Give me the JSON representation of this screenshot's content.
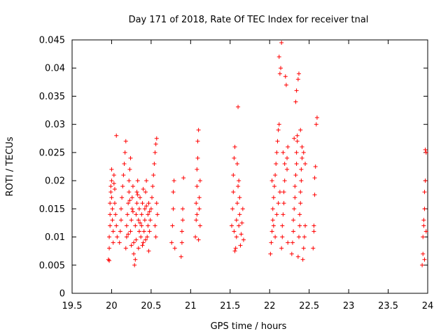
{
  "chart_data": {
    "type": "scatter",
    "title": "Day 171 of 2018, Rate Of TEC Index for receiver tnal",
    "xlabel": "GPS time / hours",
    "ylabel": "ROTI / TECUs",
    "xlim": [
      19.5,
      24
    ],
    "ylim": [
      0,
      0.045
    ],
    "xticks": [
      19.5,
      20,
      20.5,
      21,
      21.5,
      22,
      22.5,
      23,
      23.5,
      24
    ],
    "xtick_labels": [
      "19.5",
      "20",
      "20.5",
      "21",
      "21.5",
      "22",
      "22.5",
      "23",
      "23.5",
      "24"
    ],
    "yticks": [
      0,
      0.005,
      0.01,
      0.015,
      0.02,
      0.025,
      0.03,
      0.035,
      0.04,
      0.045
    ],
    "ytick_labels": [
      "0",
      "0.005",
      "0.01",
      "0.015",
      "0.02",
      "0.025",
      "0.03",
      "0.035",
      "0.04",
      "0.045"
    ],
    "marker": "+",
    "marker_color": "#ff0000",
    "grid": false,
    "series": [
      {
        "name": "ROTI",
        "points": [
          [
            19.96,
            0.006
          ],
          [
            19.97,
            0.008
          ],
          [
            19.97,
            0.01
          ],
          [
            19.98,
            0.012
          ],
          [
            19.98,
            0.014
          ],
          [
            19.98,
            0.016
          ],
          [
            19.99,
            0.018
          ],
          [
            19.99,
            0.019
          ],
          [
            20.0,
            0.02
          ],
          [
            20.0,
            0.017
          ],
          [
            20.01,
            0.015
          ],
          [
            20.01,
            0.013
          ],
          [
            20.02,
            0.011
          ],
          [
            20.02,
            0.009
          ],
          [
            20.03,
            0.0195
          ],
          [
            20.03,
            0.021
          ],
          [
            20.04,
            0.016
          ],
          [
            20.05,
            0.014
          ],
          [
            20.06,
            0.012
          ],
          [
            20.06,
            0.028
          ],
          [
            20.07,
            0.01
          ],
          [
            19.97,
            0.0058
          ],
          [
            20.0,
            0.022
          ],
          [
            20.04,
            0.0185
          ],
          [
            20.1,
            0.009
          ],
          [
            20.11,
            0.011
          ],
          [
            20.12,
            0.013
          ],
          [
            20.12,
            0.015
          ],
          [
            20.13,
            0.017
          ],
          [
            20.14,
            0.019
          ],
          [
            20.15,
            0.021
          ],
          [
            20.16,
            0.023
          ],
          [
            20.17,
            0.025
          ],
          [
            20.18,
            0.027
          ],
          [
            20.18,
            0.008
          ],
          [
            20.19,
            0.01
          ],
          [
            20.19,
            0.012
          ],
          [
            20.2,
            0.014
          ],
          [
            20.21,
            0.016
          ],
          [
            20.22,
            0.018
          ],
          [
            20.22,
            0.02
          ],
          [
            20.23,
            0.022
          ],
          [
            20.24,
            0.024
          ],
          [
            20.24,
            0.011
          ],
          [
            20.25,
            0.013
          ],
          [
            20.26,
            0.015
          ],
          [
            20.26,
            0.017
          ],
          [
            20.27,
            0.019
          ],
          [
            20.28,
            0.007
          ],
          [
            20.28,
            0.009
          ],
          [
            20.29,
            0.005
          ],
          [
            20.3,
            0.006
          ],
          [
            20.3,
            0.012
          ],
          [
            20.31,
            0.014
          ],
          [
            20.32,
            0.016
          ],
          [
            20.32,
            0.018
          ],
          [
            20.33,
            0.02
          ],
          [
            20.34,
            0.013
          ],
          [
            20.35,
            0.011
          ],
          [
            20.35,
            0.015
          ],
          [
            20.36,
            0.017
          ],
          [
            20.37,
            0.01
          ],
          [
            20.38,
            0.012
          ],
          [
            20.38,
            0.014
          ],
          [
            20.39,
            0.016
          ],
          [
            20.4,
            0.009
          ],
          [
            20.41,
            0.011
          ],
          [
            20.42,
            0.013
          ],
          [
            20.42,
            0.015
          ],
          [
            20.43,
            0.018
          ],
          [
            20.44,
            0.02
          ],
          [
            20.45,
            0.01
          ],
          [
            20.46,
            0.012
          ],
          [
            20.46,
            0.014
          ],
          [
            20.47,
            0.016
          ],
          [
            20.48,
            0.011
          ],
          [
            20.49,
            0.013
          ],
          [
            20.5,
            0.015
          ],
          [
            20.51,
            0.017
          ],
          [
            20.52,
            0.019
          ],
          [
            20.53,
            0.021
          ],
          [
            20.54,
            0.023
          ],
          [
            20.55,
            0.025
          ],
          [
            20.56,
            0.0265
          ],
          [
            20.57,
            0.0275
          ],
          [
            20.55,
            0.012
          ],
          [
            20.56,
            0.01
          ],
          [
            20.57,
            0.016
          ],
          [
            20.58,
            0.014
          ],
          [
            20.23,
            0.0165
          ],
          [
            20.27,
            0.0145
          ],
          [
            20.33,
            0.0175
          ],
          [
            20.36,
            0.0125
          ],
          [
            20.4,
            0.0185
          ],
          [
            20.44,
            0.0155
          ],
          [
            20.48,
            0.0145
          ],
          [
            20.21,
            0.0105
          ],
          [
            20.25,
            0.0085
          ],
          [
            20.31,
            0.0095
          ],
          [
            20.34,
            0.008
          ],
          [
            20.39,
            0.0085
          ],
          [
            20.43,
            0.0095
          ],
          [
            20.47,
            0.0075
          ],
          [
            20.76,
            0.009
          ],
          [
            20.77,
            0.012
          ],
          [
            20.78,
            0.015
          ],
          [
            20.78,
            0.018
          ],
          [
            20.79,
            0.02
          ],
          [
            20.8,
            0.008
          ],
          [
            20.88,
            0.0065
          ],
          [
            20.89,
            0.009
          ],
          [
            20.89,
            0.011
          ],
          [
            20.9,
            0.013
          ],
          [
            20.9,
            0.015
          ],
          [
            20.91,
            0.0205
          ],
          [
            21.06,
            0.01
          ],
          [
            21.07,
            0.013
          ],
          [
            21.07,
            0.016
          ],
          [
            21.08,
            0.019
          ],
          [
            21.08,
            0.022
          ],
          [
            21.09,
            0.024
          ],
          [
            21.09,
            0.027
          ],
          [
            21.1,
            0.029
          ],
          [
            21.1,
            0.0095
          ],
          [
            21.11,
            0.015
          ],
          [
            21.11,
            0.017
          ],
          [
            21.12,
            0.012
          ],
          [
            21.12,
            0.02
          ],
          [
            21.08,
            0.014
          ],
          [
            21.52,
            0.012
          ],
          [
            21.53,
            0.015
          ],
          [
            21.54,
            0.018
          ],
          [
            21.54,
            0.021
          ],
          [
            21.55,
            0.024
          ],
          [
            21.56,
            0.026
          ],
          [
            21.57,
            0.008
          ],
          [
            21.58,
            0.01
          ],
          [
            21.58,
            0.013
          ],
          [
            21.59,
            0.016
          ],
          [
            21.6,
            0.019
          ],
          [
            21.6,
            0.0331
          ],
          [
            21.61,
            0.012
          ],
          [
            21.62,
            0.014
          ],
          [
            21.62,
            0.017
          ],
          [
            21.63,
            0.0085
          ],
          [
            21.64,
            0.0105
          ],
          [
            21.65,
            0.0125
          ],
          [
            21.66,
            0.015
          ],
          [
            21.67,
            0.0095
          ],
          [
            21.56,
            0.0075
          ],
          [
            21.59,
            0.023
          ],
          [
            21.61,
            0.02
          ],
          [
            21.55,
            0.011
          ],
          [
            22.01,
            0.007
          ],
          [
            22.02,
            0.009
          ],
          [
            22.03,
            0.011
          ],
          [
            22.04,
            0.013
          ],
          [
            22.04,
            0.015
          ],
          [
            22.05,
            0.017
          ],
          [
            22.06,
            0.019
          ],
          [
            22.07,
            0.021
          ],
          [
            22.08,
            0.023
          ],
          [
            22.09,
            0.025
          ],
          [
            22.1,
            0.027
          ],
          [
            22.11,
            0.029
          ],
          [
            22.12,
            0.03
          ],
          [
            22.12,
            0.042
          ],
          [
            22.13,
            0.039
          ],
          [
            22.14,
            0.04
          ],
          [
            22.15,
            0.0445
          ],
          [
            22.15,
            0.008
          ],
          [
            22.16,
            0.01
          ],
          [
            22.16,
            0.012
          ],
          [
            22.17,
            0.014
          ],
          [
            22.18,
            0.016
          ],
          [
            22.18,
            0.018
          ],
          [
            22.19,
            0.02
          ],
          [
            22.2,
            0.0385
          ],
          [
            22.21,
            0.037
          ],
          [
            22.22,
            0.022
          ],
          [
            22.22,
            0.024
          ],
          [
            22.23,
            0.026
          ],
          [
            22.23,
            0.009
          ],
          [
            22.09,
            0.014
          ],
          [
            22.11,
            0.016
          ],
          [
            22.13,
            0.018
          ],
          [
            22.05,
            0.012
          ],
          [
            22.07,
            0.01
          ],
          [
            22.03,
            0.02
          ],
          [
            22.17,
            0.025
          ],
          [
            22.19,
            0.023
          ],
          [
            22.28,
            0.007
          ],
          [
            22.29,
            0.009
          ],
          [
            22.3,
            0.011
          ],
          [
            22.3,
            0.013
          ],
          [
            22.31,
            0.015
          ],
          [
            22.32,
            0.017
          ],
          [
            22.32,
            0.019
          ],
          [
            22.33,
            0.021
          ],
          [
            22.34,
            0.023
          ],
          [
            22.34,
            0.025
          ],
          [
            22.35,
            0.027
          ],
          [
            22.35,
            0.028
          ],
          [
            22.33,
            0.034
          ],
          [
            22.34,
            0.036
          ],
          [
            22.36,
            0.038
          ],
          [
            22.37,
            0.039
          ],
          [
            22.37,
            0.01
          ],
          [
            22.38,
            0.012
          ],
          [
            22.38,
            0.014
          ],
          [
            22.39,
            0.016
          ],
          [
            22.39,
            0.018
          ],
          [
            22.4,
            0.02
          ],
          [
            22.4,
            0.022
          ],
          [
            22.41,
            0.024
          ],
          [
            22.41,
            0.026
          ],
          [
            22.42,
            0.006
          ],
          [
            22.43,
            0.008
          ],
          [
            22.44,
            0.01
          ],
          [
            22.45,
            0.012
          ],
          [
            22.45,
            0.023
          ],
          [
            22.36,
            0.0065
          ],
          [
            22.31,
            0.0275
          ],
          [
            22.39,
            0.029
          ],
          [
            22.43,
            0.025
          ],
          [
            22.55,
            0.008
          ],
          [
            22.56,
            0.011
          ],
          [
            22.56,
            0.012
          ],
          [
            22.57,
            0.0175
          ],
          [
            22.57,
            0.0205
          ],
          [
            22.58,
            0.0225
          ],
          [
            22.59,
            0.03
          ],
          [
            22.6,
            0.0312
          ],
          [
            23.93,
            0.005
          ],
          [
            23.94,
            0.007
          ],
          [
            23.94,
            0.01
          ],
          [
            23.95,
            0.012
          ],
          [
            23.95,
            0.013
          ],
          [
            23.96,
            0.015
          ],
          [
            23.96,
            0.018
          ],
          [
            23.97,
            0.02
          ],
          [
            23.97,
            0.0255
          ],
          [
            23.98,
            0.025
          ],
          [
            23.98,
            0.011
          ],
          [
            23.96,
            0.006
          ]
        ]
      }
    ]
  }
}
